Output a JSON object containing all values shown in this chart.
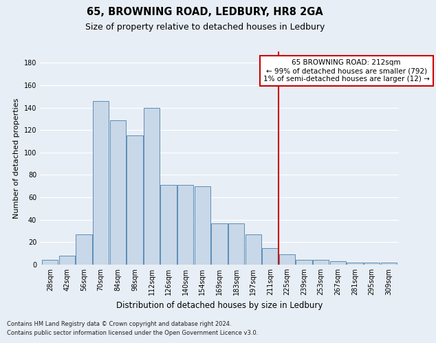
{
  "title": "65, BROWNING ROAD, LEDBURY, HR8 2GA",
  "subtitle": "Size of property relative to detached houses in Ledbury",
  "xlabel": "Distribution of detached houses by size in Ledbury",
  "ylabel": "Number of detached properties",
  "footnote1": "Contains HM Land Registry data © Crown copyright and database right 2024.",
  "footnote2": "Contains public sector information licensed under the Open Government Licence v3.0.",
  "bar_labels": [
    "28sqm",
    "42sqm",
    "56sqm",
    "70sqm",
    "84sqm",
    "98sqm",
    "112sqm",
    "126sqm",
    "140sqm",
    "154sqm",
    "169sqm",
    "183sqm",
    "197sqm",
    "211sqm",
    "225sqm",
    "239sqm",
    "253sqm",
    "267sqm",
    "281sqm",
    "295sqm",
    "309sqm"
  ],
  "bar_heights": [
    4,
    8,
    27,
    146,
    129,
    115,
    140,
    71,
    71,
    70,
    37,
    37,
    27,
    15,
    9,
    4,
    4,
    3,
    2,
    2,
    2
  ],
  "bar_color": "#c8d8e8",
  "bar_edge_color": "#5b8db8",
  "vline_x_index": 13,
  "vline_color": "#cc0000",
  "annotation_text": "65 BROWNING ROAD: 212sqm\n← 99% of detached houses are smaller (792)\n1% of semi-detached houses are larger (12) →",
  "annotation_box_color": "#ffffff",
  "annotation_box_edge_color": "#cc0000",
  "annotation_fontsize": 7.5,
  "ylim": [
    0,
    190
  ],
  "yticks": [
    0,
    20,
    40,
    60,
    80,
    100,
    120,
    140,
    160,
    180
  ],
  "bg_color": "#e8eef5",
  "grid_color": "#ffffff",
  "title_fontsize": 10.5,
  "subtitle_fontsize": 9,
  "xlabel_fontsize": 8.5,
  "ylabel_fontsize": 8,
  "tick_fontsize": 7,
  "footnote_fontsize": 6
}
